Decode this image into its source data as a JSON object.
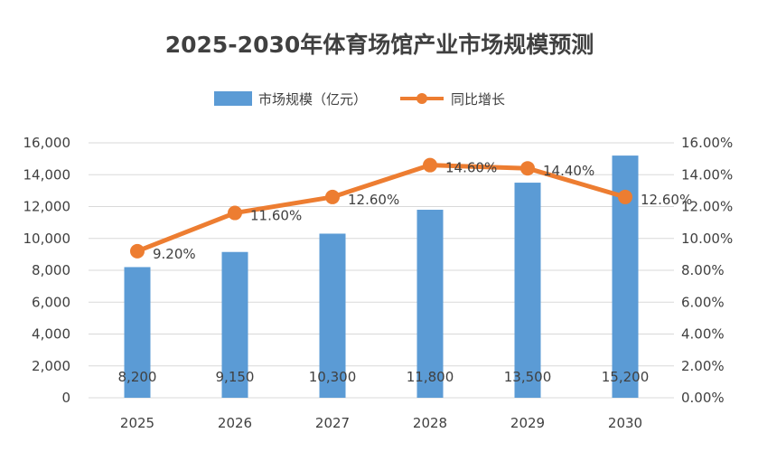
{
  "chart_data": {
    "type": "bar",
    "title": "2025-2030年体育场馆产业市场规模预测",
    "categories": [
      "2025",
      "2026",
      "2027",
      "2028",
      "2029",
      "2030"
    ],
    "series": [
      {
        "name": "市场规模（亿元）",
        "type": "bar",
        "axis": "left",
        "color": "#5b9bd5",
        "values": [
          8200,
          9150,
          10300,
          11800,
          13500,
          15200
        ],
        "labels": [
          "8,200",
          "9,150",
          "10,300",
          "11,800",
          "13,500",
          "15,200"
        ]
      },
      {
        "name": "同比增长",
        "type": "line",
        "axis": "right",
        "color": "#ed7d31",
        "values": [
          9.2,
          11.6,
          12.6,
          14.6,
          14.4,
          12.6
        ],
        "labels": [
          "9.20%",
          "11.60%",
          "12.60%",
          "14.60%",
          "14.40%",
          "12.60%"
        ]
      }
    ],
    "y_left": {
      "min": 0,
      "max": 16000,
      "ticks": [
        "0",
        "2,000",
        "4,000",
        "6,000",
        "8,000",
        "10,000",
        "12,000",
        "14,000",
        "16,000"
      ]
    },
    "y_right": {
      "min": 0,
      "max": 16,
      "ticks": [
        "0.00%",
        "2.00%",
        "4.00%",
        "6.00%",
        "8.00%",
        "10.00%",
        "12.00%",
        "14.00%",
        "16.00%"
      ]
    },
    "grid": true,
    "legend_position": "top"
  }
}
